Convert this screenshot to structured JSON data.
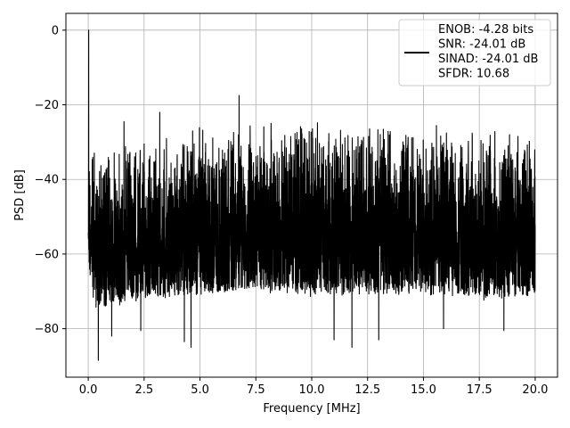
{
  "chart_data": {
    "type": "line",
    "xlabel": "Frequency [MHz]",
    "ylabel": "PSD [dB]",
    "xlim": [
      -1,
      21
    ],
    "ylim": [
      -93,
      4.5
    ],
    "xticks": [
      0.0,
      2.5,
      5.0,
      7.5,
      10.0,
      12.5,
      15.0,
      17.5,
      20.0
    ],
    "xtick_labels": [
      "0.0",
      "2.5",
      "5.0",
      "7.5",
      "10.0",
      "12.5",
      "15.0",
      "17.5",
      "20.0"
    ],
    "yticks": [
      0,
      -20,
      -40,
      -60,
      -80
    ],
    "ytick_labels": [
      "0",
      "−20",
      "−40",
      "−60",
      "−80"
    ],
    "grid": true,
    "legend_placement": "top-right",
    "line_color": "#000000",
    "series": [
      {
        "name": "ENOB: -4.28 bits\nSNR: -24.01 dB\nSINAD: -24.01 dB\nSFDR: 10.68",
        "x_start": 0,
        "x_end": 20,
        "peak_envelope": [
          [
            0,
            -23
          ],
          [
            0.1,
            -29
          ],
          [
            1.0,
            -30
          ],
          [
            2.5,
            -28
          ],
          [
            5.0,
            -25
          ],
          [
            7.5,
            -23
          ],
          [
            10.0,
            -23
          ],
          [
            12.5,
            -24
          ],
          [
            15.0,
            -24
          ],
          [
            17.5,
            -25
          ],
          [
            20.0,
            -26
          ]
        ],
        "floor_envelope": [
          [
            0,
            -62
          ],
          [
            0.3,
            -74
          ],
          [
            1.0,
            -73
          ],
          [
            2.5,
            -71
          ],
          [
            5.0,
            -70
          ],
          [
            7.5,
            -69
          ],
          [
            10.0,
            -70
          ],
          [
            12.5,
            -70
          ],
          [
            15.0,
            -70
          ],
          [
            17.5,
            -71
          ],
          [
            20.0,
            -70
          ]
        ],
        "spikes": [
          {
            "x": 0.02,
            "y": 0
          },
          {
            "x": 1.6,
            "y": -24.5
          },
          {
            "x": 3.2,
            "y": -22
          },
          {
            "x": 6.75,
            "y": -17.5
          }
        ],
        "dips": [
          {
            "x": 0.45,
            "y": -88.5
          },
          {
            "x": 1.05,
            "y": -82
          },
          {
            "x": 2.35,
            "y": -80.5
          },
          {
            "x": 4.3,
            "y": -83.5
          },
          {
            "x": 4.6,
            "y": -85
          },
          {
            "x": 11.0,
            "y": -83
          },
          {
            "x": 11.8,
            "y": -85
          },
          {
            "x": 13.0,
            "y": -83
          },
          {
            "x": 15.9,
            "y": -80
          },
          {
            "x": 18.6,
            "y": -80.5
          }
        ]
      }
    ],
    "legend_lines": [
      "ENOB: -4.28 bits",
      "SNR: -24.01 dB",
      "SINAD: -24.01 dB",
      "SFDR: 10.68"
    ]
  }
}
